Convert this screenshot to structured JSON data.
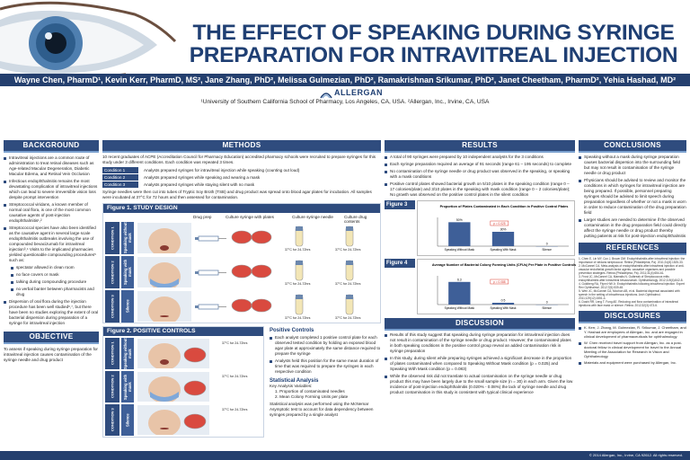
{
  "title_line1": "THE EFFECT OF SPEAKING DURING SYRINGE",
  "title_line2": "PREPARATION FOR INTRAVITREAL INJECTION",
  "authors": "Wayne Chen, PharmD¹, Kevin Kerr, PharmD, MS², Jane Zhang, PhD², Melissa Gulmezian, PhD², Ramakrishnan Srikumar, PhD², Janet Cheetham, PharmD², Yehia Hashad, MD²",
  "logo": "ALLERGAN",
  "affiliation": "¹University of Southern California School of Pharmacy, Los Angeles, CA, USA. ²Allergan, Inc., Irvine, CA, USA",
  "background": {
    "heading": "BACKGROUND",
    "bullets": [
      "Intravitreal injections are a common route of administration to treat retinal diseases such as Age-related Macular Degeneration, Diabetic Macular Edema, and Retinal Vein Occlusion",
      "Infectious endophthalmitis remains the most devastating complication of intravitreal injections which can lead to severe irreversible vision loss despite prompt intervention",
      "Streptococcal viridans, a known member of normal oral flora, is one of the most common causative agents of post-injection endophthalmitis¹,²",
      "Streptococcal species have also been identified as the causative agent in several large scale endophthalmitis outbreaks involving the use of compounded bevacizumab for intravitreal injection³,⁴ Visits to the implicated pharmacies yielded questionable compounding procedures⁵ such as:"
    ],
    "sub_bullets": [
      "spectator allowed in clean room",
      "no face covers or mask",
      "talking during compounding procedure",
      "no verbal banter between pharmacists and drug"
    ],
    "last_bullet": "Dispersion of oral flora during the injection procedure has been well studied⁶,⁷, but there have been no studies exploring the extent of oral bacterial dispersion during preparation of a syringe for intravitreal injection",
    "objective_heading": "OBJECTIVE",
    "objective": "To assess if speaking during syringe preparation for intravitreal injection causes contamination of the syringe needle and drug product"
  },
  "methods": {
    "heading": "METHODS",
    "intro": "10 recent graduates of ACPE (Accreditation Council for Pharmacy Education) accredited pharmacy schools were recruited to prepare syringes for this study under 3 different conditions. Each condition was repeated 3 times.",
    "conditions": [
      {
        "tag": "Condition 1",
        "text": "Analysts prepared syringes for intravitreal injection while speaking (counting out loud)"
      },
      {
        "tag": "Condition 2",
        "text": "Analysts prepared syringes while speaking and wearing a mask"
      },
      {
        "tag": "Condition 3",
        "text": "Analysts prepared syringes while staying silent with no mask"
      }
    ],
    "outro": "Syringe needles were then cut into tubes of Tryptic Soy Broth (TSB) and drug product was spread onto blood agar plates for incubation. All samples were incubated at 37°C for 72 hours and then assessed for contamination.",
    "fig1_title": "Figure 1. STUDY DESIGN",
    "fig1_cols": [
      "Drug prep",
      "Culture syringe with plates",
      "Culture syringe needle",
      "Culture drug contents"
    ],
    "fig1_rows": [
      "Speaking without mask",
      "Speaking with mask",
      "Silence"
    ],
    "fig1_row_conds": [
      "CONDITION 1",
      "CONDITION 2",
      "CONDITION 3"
    ],
    "incubation": "37°C for 24-72hrs",
    "fig2_title": "Figure 2. POSITIVE CONTROLS",
    "positive_heading": "Positive Controls",
    "positive_bullets": [
      "Each analyst completed 1 positive control plate for each observed tested condition by holding an exposed blood agar plate at approximately the same distance required to prepare the syringe",
      "Analysts held this position for the same mean duration of time that was required to prepare the syringes in each respective condition"
    ],
    "stats_heading": "Statistical Analysis",
    "stats_key": "Key Analysis Variables:",
    "stats_items": [
      "1. Proportion of contaminated needles",
      "2. Mean Colony Forming Units per plate"
    ],
    "stats_text": "Statistical analysis was performed using the McNemar Asymptotic test to account for data dependency between syringes prepared by a single analyst"
  },
  "results": {
    "heading": "RESULTS",
    "bullets": [
      "A total of 90 syringes were prepared by 10 independent analysts for the 3 conditions",
      "Each syringe preparation required an average of 91 seconds (range 61 – 195 seconds) to complete",
      "No contamination of the syringe needle or drug product was observed in the speaking, or speaking with a mask conditions",
      "Positive control plates showed bacterial growth on 5/10 plates in the speaking condition (range 0 – 17 colonies/plate) and 3/10 plates in the speaking with mask condition (range 0 – 2 colonies/plate); No growth was observed on the positive control plates in the silent condition"
    ],
    "fig3_label": "Figure 3",
    "fig4_label": "Figure 4",
    "discussion_heading": "DISCUSSION",
    "discussion_bullets": [
      "Results of this study suggest that speaking during syringe preparation for intravitreal injection does not result in contamination of the syringe needle or drug product. However, the contaminated plates in both speaking conditions in the positive control group reveal an added contamination risk in syringe preparation",
      "In this study, during silent while preparing syringes achieved a significant decrease in the proportion of plates contaminated when compared to Speaking Without Mask condition (p = 0.025) and Speaking With Mask condition (p = 0.083)",
      "While the observed risk did not translate to actual contamination on the syringe needle or drug product this may have been largely due to the small sample size (n = 30) in each arm. Given the low incidence of post-injection endophthalmitis (0.020% - 0.08%) the lack of syringe needle and drug product contamination in this study is consistent with typical clinical experience"
    ]
  },
  "chart_data": [
    {
      "type": "bar",
      "title": "Proportion of Plates Contaminated in Each Condition in Positive Control Plates",
      "categories": [
        "Speaking Without Mask",
        "Speaking With Mask",
        "Silence"
      ],
      "values": [
        50,
        30,
        0
      ],
      "data_labels": [
        "50%",
        "30%",
        "0"
      ],
      "ylim": [
        0,
        60
      ],
      "annotation": "p = 0.025"
    },
    {
      "type": "bar",
      "title": "Average Number of Bacterial Colony Forming Units (CFUs) Per Plate in Positive Controls",
      "categories": [
        "Speaking Without Mask",
        "Speaking With Mask",
        "Silence"
      ],
      "values": [
        6.3,
        0.5,
        0
      ],
      "data_labels": [
        "6.3",
        "0.5",
        "0"
      ],
      "ylim": [
        0,
        8
      ],
      "annotation": "p = 0.088"
    }
  ],
  "conclusions": {
    "heading": "CONCLUSIONS",
    "bullets": [
      "Speaking without a mask during syringe preparation causes bacterial dispersion into the surrounding field but may not result in contamination of the syringe needle or drug product",
      "Physicians should be advised to review and monitor the conditions in which syringes for intravitreal injection are being prepared. If possible, personnel preparing syringes should be advised to limit speech during preparation regardless of whether or not a mask is worn in order to reduce contamination of the drug preparation field",
      "Larger studies are needed to determine if the observed contamination in the drug preparation field could directly affect the syringe needle or drug product thereby putting patients at risk for post-injection endophthalmitis"
    ],
    "references_heading": "REFERENCES",
    "references": [
      "1. Chen E, Lin MY, Cox J, Brown DM. Endophthalmitis after intravitreal injection: the importance of viridans streptococci. Retina (Philadelphia, Pa). 2011;31(8):1525-33.",
      "2. McCannel CA. Meta-analysis of endophthalmitis after intravitreal injection of anti-vascular endothelial growth factor agents: causative organisms and possible prevention strategies. Retina (Philadelphia, Pa). 2011;31(4):654-61.",
      "3. Frost JC, McCannel CA, Mamalis N. Outbreak of Streptococcus mitis endophthalmitis after intravitreal bevacizumab. Ophthalmology. 2012;119(4):842-8.",
      "4. Goldberg RA, Flynn HW Jr. Endophthalmitis following intravitreal injection. Expert Rev Ophthalmol. 2012;7(6):539-48.",
      "5. Wen JC, McCannel CA, Mochon AB, et al. Bacterial dispersal associated with speech in the setting of intravitreous injections. Arch Ophthalmol. 2011;129(12):1551-4.",
      "6. Doshi RR, Leng T, Fung AE. Reducing oral flora contamination of intravitreal injections with face mask or silence. Retina. 2012;32(3):473-6."
    ],
    "disclosures_heading": "DISCLOSURES",
    "disclosures": [
      "K. Kerr, J. Zhang, M. Gulmezian, R. Srikumar, J. Cheetham, and Y. Hashad are employees of Allergan, Inc. and are engaged in clinical development of pharmaceuticals for ophthalmology",
      "W. Chen received travel support from Allergan, Inc. as a post-doctoral fellow in clinical development for travel to the Annual Meeting of the Association for Research in Vision and Ophthalmology",
      "Materials and equipment were purchased by Allergan, Inc."
    ]
  },
  "footer": "© 2014 Allergan, Inc., Irvine, CA 92612. All rights reserved.",
  "colors": {
    "navy": "#243f6e",
    "section": "#2f4c7e",
    "accent": "#7ba1cf",
    "bar": "#3e5f98",
    "highlight": "#d93a2f"
  }
}
